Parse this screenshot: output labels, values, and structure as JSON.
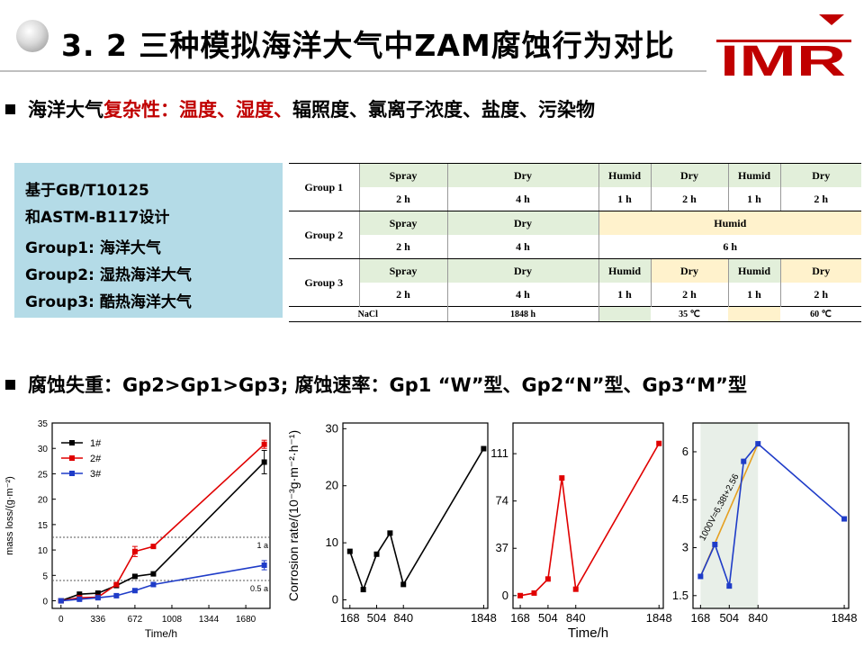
{
  "title": "3. 2 三种模拟海洋大气中ZAM腐蚀行为对比",
  "logo_text": "IMR",
  "bullet1": {
    "prefix": "海洋大气",
    "red1": "复杂性",
    "colon": "：",
    "red2": "温度、湿度、",
    "rest": "辐照度、氯离子浓度、盐度、污染物"
  },
  "bullet2": "腐蚀失重：Gp2>Gp1>Gp3; 腐蚀速率：Gp1 “W”型、Gp2“N”型、Gp3“M”型",
  "infobox": {
    "lines": [
      "基于GB/T10125",
      "和ASTM-B117设计",
      "Group1: 海洋大气",
      "Group2: 湿热海洋大气",
      "Group3: 酷热海洋大气"
    ]
  },
  "table": {
    "groups": [
      {
        "label": "Group 1",
        "stages": [
          "Spray",
          "Dry",
          "Humid",
          "Dry",
          "Humid",
          "Dry"
        ],
        "times": [
          "2 h",
          "4 h",
          "1 h",
          "2 h",
          "1 h",
          "2 h"
        ]
      },
      {
        "label": "Group 2",
        "stages": [
          "Spray",
          "Dry",
          "Humid"
        ],
        "times": [
          "2 h",
          "4 h",
          "6 h"
        ]
      },
      {
        "label": "Group 3",
        "stages": [
          "Spray",
          "Dry",
          "Humid",
          "Dry",
          "Humid",
          "Dry"
        ],
        "times": [
          "2 h",
          "4 h",
          "1 h",
          "2 h",
          "1 h",
          "2 h"
        ]
      }
    ],
    "footer": {
      "nacl": "NaCl",
      "total": "1848 h",
      "temp1": "35 ℃",
      "temp2": "60 ℃"
    }
  },
  "chart_data": [
    {
      "type": "line",
      "xlabel": "Time/h",
      "ylabel": "mass loss/(g·m⁻²)",
      "xticks": [
        0,
        336,
        672,
        1008,
        1344,
        1680
      ],
      "yticks": [
        0,
        5,
        10,
        15,
        20,
        25,
        30,
        35
      ],
      "xlim": [
        -80,
        1900
      ],
      "ylim": [
        -1.5,
        35
      ],
      "legend_position": "top-left",
      "series": [
        {
          "name": "1#",
          "color": "#000000",
          "x": [
            0,
            168,
            336,
            504,
            672,
            840,
            1848
          ],
          "y": [
            0,
            1.3,
            1.5,
            3.0,
            4.8,
            5.3,
            27.3
          ]
        },
        {
          "name": "2#",
          "color": "#e00000",
          "x": [
            0,
            168,
            336,
            504,
            672,
            840,
            1848
          ],
          "y": [
            0,
            0.6,
            0.7,
            3.2,
            9.7,
            10.7,
            30.8
          ]
        },
        {
          "name": "3#",
          "color": "#1f3cc8",
          "x": [
            0,
            168,
            336,
            504,
            672,
            840,
            1848
          ],
          "y": [
            0,
            0.3,
            0.6,
            1.0,
            2.0,
            3.2,
            7.0
          ]
        }
      ],
      "reference_lines": [
        {
          "y": 12.5,
          "label": "1 a"
        },
        {
          "y": 4.0,
          "label": "0.5 a"
        }
      ]
    },
    {
      "type": "line",
      "ylabel": "Corrosion rate/(10⁻³g·m⁻²·h⁻¹)",
      "xticks": [
        168,
        504,
        840,
        1848
      ],
      "yticks": [
        0,
        10,
        20,
        30
      ],
      "xlim": [
        80,
        1900
      ],
      "ylim": [
        -1.5,
        31
      ],
      "series": [
        {
          "color": "#000000",
          "x": [
            168,
            336,
            504,
            672,
            840,
            1848
          ],
          "y": [
            8.5,
            1.8,
            8.0,
            11.7,
            2.7,
            26.5
          ]
        }
      ]
    },
    {
      "type": "line",
      "xlabel": "Time/h",
      "xticks": [
        168,
        504,
        840,
        1848
      ],
      "yticks": [
        0,
        37,
        74,
        111
      ],
      "xlim": [
        80,
        1900
      ],
      "ylim": [
        -10,
        135
      ],
      "series": [
        {
          "color": "#e00000",
          "x": [
            168,
            336,
            504,
            672,
            840,
            1848
          ],
          "y": [
            0,
            2,
            13,
            92,
            5,
            119
          ]
        }
      ]
    },
    {
      "type": "line",
      "xticks": [
        168,
        504,
        840,
        1848
      ],
      "yticks": [
        1.5,
        3.0,
        4.5,
        6.0
      ],
      "xlim": [
        80,
        1900
      ],
      "ylim": [
        1.1,
        6.9
      ],
      "shaded_x": [
        168,
        840
      ],
      "annotation": "1000V=6.38t+2.56",
      "fit_line": {
        "color": "#e6a020",
        "x": [
          168,
          840
        ],
        "y": [
          2.1,
          6.25
        ]
      },
      "series": [
        {
          "color": "#1f3cc8",
          "x": [
            168,
            336,
            504,
            672,
            840,
            1848
          ],
          "y": [
            2.1,
            3.1,
            1.8,
            5.7,
            6.25,
            3.9
          ]
        }
      ]
    }
  ]
}
